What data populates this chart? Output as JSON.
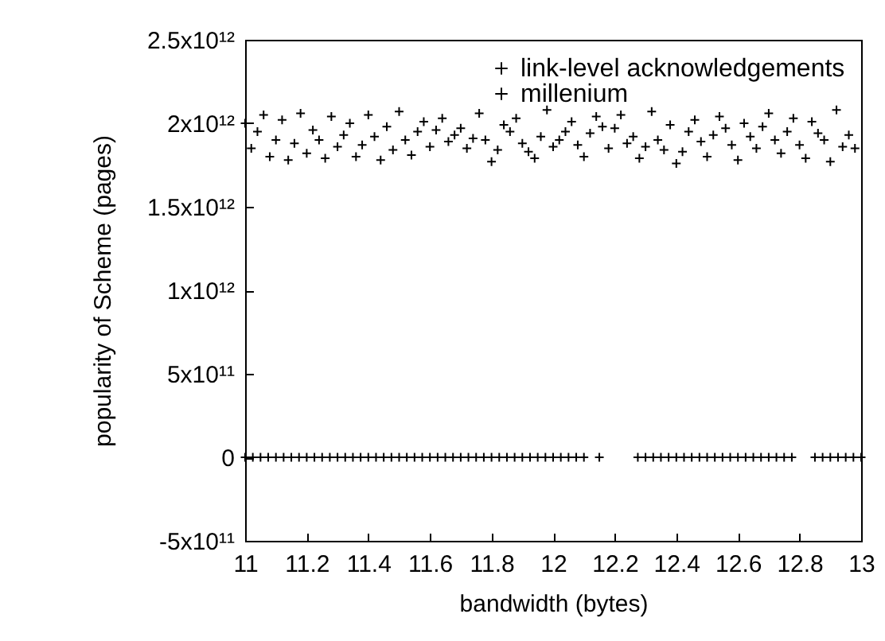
{
  "chart_data": {
    "type": "scatter",
    "xlabel": "bandwidth (bytes)",
    "ylabel": "popularity of Scheme  (pages)",
    "xlim": [
      11,
      13
    ],
    "xticks": [
      11,
      11.2,
      11.4,
      11.6,
      11.8,
      12,
      12.2,
      12.4,
      12.6,
      12.8,
      13
    ],
    "ylim": [
      -500000000000.0,
      2500000000000.0
    ],
    "yticks": [
      {
        "value": -500000000000.0,
        "label": "-5x10¹¹"
      },
      0,
      {
        "value": 500000000000.0,
        "label": "5x10¹¹"
      },
      {
        "value": 1000000000000.0,
        "label": "1x10¹²"
      },
      {
        "value": 1500000000000.0,
        "label": "1.5x10¹²"
      },
      {
        "value": 2000000000000.0,
        "label": "2x10¹²"
      },
      {
        "value": 2500000000000.0,
        "label": "2.5x10¹²"
      }
    ],
    "grid": false,
    "legend": "top right",
    "marker": "cross",
    "series": [
      {
        "name": "link-level acknowledgements",
        "color": "#000000",
        "x": [
          11,
          11.02,
          11.04,
          11.06,
          11.08,
          11.1,
          11.12,
          11.14,
          11.16,
          11.18,
          11.2,
          11.22,
          11.24,
          11.26,
          11.28,
          11.3,
          11.32,
          11.34,
          11.36,
          11.38,
          11.4,
          11.42,
          11.44,
          11.46,
          11.48,
          11.5,
          11.52,
          11.54,
          11.56,
          11.58,
          11.6,
          11.62,
          11.64,
          11.66,
          11.68,
          11.7,
          11.72,
          11.74,
          11.76,
          11.78,
          11.8,
          11.82,
          11.84,
          11.86,
          11.88,
          11.9,
          11.92,
          11.94,
          11.96,
          11.98,
          12,
          12.02,
          12.04,
          12.06,
          12.08,
          12.1,
          12.12,
          12.14,
          12.16,
          12.18,
          12.2,
          12.22,
          12.24,
          12.26,
          12.28,
          12.3,
          12.32,
          12.34,
          12.36,
          12.38,
          12.4,
          12.42,
          12.44,
          12.46,
          12.48,
          12.5,
          12.52,
          12.54,
          12.56,
          12.58,
          12.6,
          12.62,
          12.64,
          12.66,
          12.68,
          12.7,
          12.72,
          12.74,
          12.76,
          12.78,
          12.8,
          12.82,
          12.84,
          12.86,
          12.88,
          12.9,
          12.92,
          12.94,
          12.96,
          12.98
        ],
        "values": [
          2000000000000.0,
          1850000000000.0,
          1950000000000.0,
          2050000000000.0,
          1800000000000.0,
          1900000000000.0,
          2020000000000.0,
          1780000000000.0,
          1880000000000.0,
          2060000000000.0,
          1820000000000.0,
          1960000000000.0,
          1900000000000.0,
          1790000000000.0,
          2040000000000.0,
          1860000000000.0,
          1930000000000.0,
          2000000000000.0,
          1800000000000.0,
          1870000000000.0,
          2050000000000.0,
          1920000000000.0,
          1780000000000.0,
          1980000000000.0,
          1840000000000.0,
          2070000000000.0,
          1900000000000.0,
          1810000000000.0,
          1950000000000.0,
          2010000000000.0,
          1860000000000.0,
          1960000000000.0,
          2030000000000.0,
          1890000000000.0,
          1930000000000.0,
          1970000000000.0,
          1850000000000.0,
          1910000000000.0,
          2060000000000.0,
          1900000000000.0,
          1770000000000.0,
          1840000000000.0,
          1990000000000.0,
          1950000000000.0,
          2030000000000.0,
          1880000000000.0,
          1830000000000.0,
          1790000000000.0,
          1920000000000.0,
          2080000000000.0,
          1860000000000.0,
          1900000000000.0,
          1950000000000.0,
          2010000000000.0,
          1870000000000.0,
          1800000000000.0,
          1940000000000.0,
          2040000000000.0,
          1980000000000.0,
          1850000000000.0,
          1970000000000.0,
          2050000000000.0,
          1880000000000.0,
          1920000000000.0,
          1790000000000.0,
          1860000000000.0,
          2070000000000.0,
          1900000000000.0,
          1840000000000.0,
          1990000000000.0,
          1760000000000.0,
          1830000000000.0,
          1950000000000.0,
          2020000000000.0,
          1890000000000.0,
          1800000000000.0,
          1930000000000.0,
          2040000000000.0,
          1970000000000.0,
          1870000000000.0,
          1780000000000.0,
          2000000000000.0,
          1920000000000.0,
          1850000000000.0,
          1980000000000.0,
          2060000000000.0,
          1900000000000.0,
          1820000000000.0,
          1950000000000.0,
          2030000000000.0,
          1870000000000.0,
          1790000000000.0,
          2010000000000.0,
          1940000000000.0,
          1900000000000.0,
          1770000000000.0,
          2080000000000.0,
          1860000000000.0,
          1930000000000.0,
          1850000000000.0
        ]
      },
      {
        "name": "millenium",
        "color": "#000000",
        "x": [
          11,
          11.025,
          11.05,
          11.075,
          11.1,
          11.125,
          11.15,
          11.175,
          11.2,
          11.225,
          11.25,
          11.275,
          11.3,
          11.325,
          11.35,
          11.375,
          11.4,
          11.425,
          11.45,
          11.475,
          11.5,
          11.525,
          11.55,
          11.575,
          11.6,
          11.625,
          11.65,
          11.675,
          11.7,
          11.725,
          11.75,
          11.775,
          11.8,
          11.825,
          11.85,
          11.875,
          11.9,
          11.925,
          11.95,
          11.975,
          12,
          12.025,
          12.05,
          12.075,
          12.1,
          12.15,
          12.275,
          12.3,
          12.325,
          12.35,
          12.375,
          12.4,
          12.425,
          12.45,
          12.475,
          12.5,
          12.525,
          12.55,
          12.575,
          12.6,
          12.625,
          12.65,
          12.675,
          12.7,
          12.725,
          12.75,
          12.775,
          12.85,
          12.875,
          12.9,
          12.925,
          12.95,
          12.975,
          13
        ],
        "values": [
          0,
          0,
          0,
          0,
          0,
          0,
          0,
          0,
          0,
          0,
          0,
          0,
          0,
          0,
          0,
          0,
          0,
          0,
          0,
          0,
          0,
          0,
          0,
          0,
          0,
          0,
          0,
          0,
          0,
          0,
          0,
          0,
          0,
          0,
          0,
          0,
          0,
          0,
          0,
          0,
          0,
          0,
          0,
          0,
          0,
          0,
          0,
          0,
          0,
          0,
          0,
          0,
          0,
          0,
          0,
          0,
          0,
          0,
          0,
          0,
          0,
          0,
          0,
          0,
          0,
          0,
          0,
          0,
          0,
          0,
          0,
          0,
          0,
          0
        ]
      }
    ]
  }
}
